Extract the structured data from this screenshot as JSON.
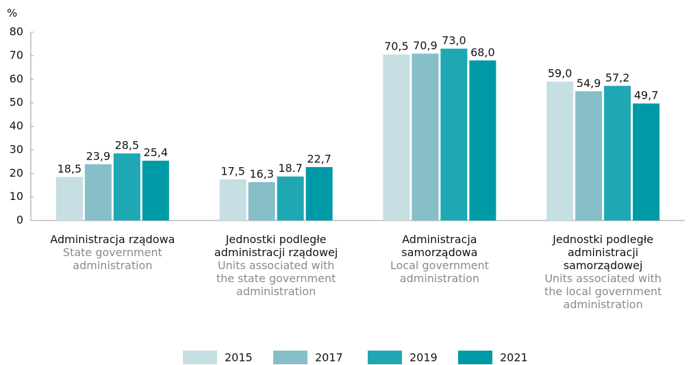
{
  "chart_data": {
    "type": "bar",
    "y_unit": "%",
    "categories": [
      "Administracja rządowa",
      "Jednostki podległe administracji rządowej",
      "Administracja samorządowa",
      "Jednostki podległe administracji samorządowej"
    ],
    "categories_en": [
      "State government administration",
      "Units associated with the state government administration",
      "Local government administration",
      "Units associated with the local government administration"
    ],
    "series": [
      {
        "name": "2015",
        "color": "#c5dfe3",
        "values": [
          18.5,
          17.5,
          70.5,
          59.0
        ],
        "value_labels": [
          "18,5",
          "17,5",
          "70,5",
          "59,0"
        ]
      },
      {
        "name": "2017",
        "color": "#86bfc8",
        "values": [
          23.9,
          16.3,
          70.9,
          54.9
        ],
        "value_labels": [
          "23,9",
          "16,3",
          "70,9",
          "54,9"
        ]
      },
      {
        "name": "2019",
        "color": "#1fa7b3",
        "values": [
          28.5,
          18.7,
          73.0,
          57.2
        ],
        "value_labels": [
          "28,5",
          "18.7",
          "73,0",
          "57,2"
        ]
      },
      {
        "name": "2021",
        "color": "#009aa6",
        "values": [
          25.4,
          22.7,
          68.0,
          49.7
        ],
        "value_labels": [
          "25,4",
          "22,7",
          "68,0",
          "49,7"
        ]
      }
    ],
    "ylim": [
      0,
      80
    ],
    "yticks": [
      0,
      10,
      20,
      30,
      40,
      50,
      60,
      70,
      80
    ],
    "grid": false
  }
}
